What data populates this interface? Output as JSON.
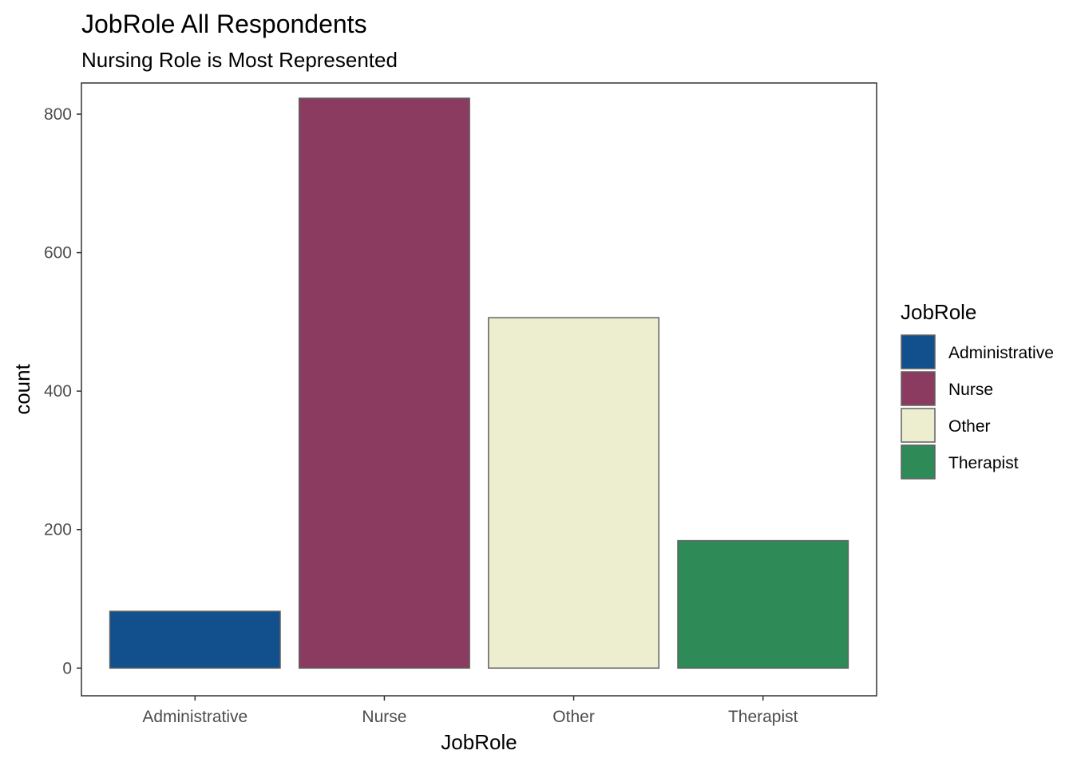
{
  "chart_data": {
    "type": "bar",
    "title": "JobRole All Respondents",
    "subtitle": "Nursing Role is Most Represented",
    "xlabel": "JobRole",
    "ylabel": "count",
    "categories": [
      "Administrative",
      "Nurse",
      "Other",
      "Therapist"
    ],
    "values": [
      82,
      823,
      506,
      184
    ],
    "colors": [
      "#11508c",
      "#8b3b60",
      "#edeed0",
      "#2e8b57"
    ],
    "bar_outline": "#606060",
    "ylim": [
      -40,
      845
    ],
    "yticks": [
      0,
      200,
      400,
      600,
      800
    ],
    "grid": false,
    "legend": {
      "title": "JobRole",
      "position": "right",
      "items": [
        "Administrative",
        "Nurse",
        "Other",
        "Therapist"
      ]
    }
  }
}
